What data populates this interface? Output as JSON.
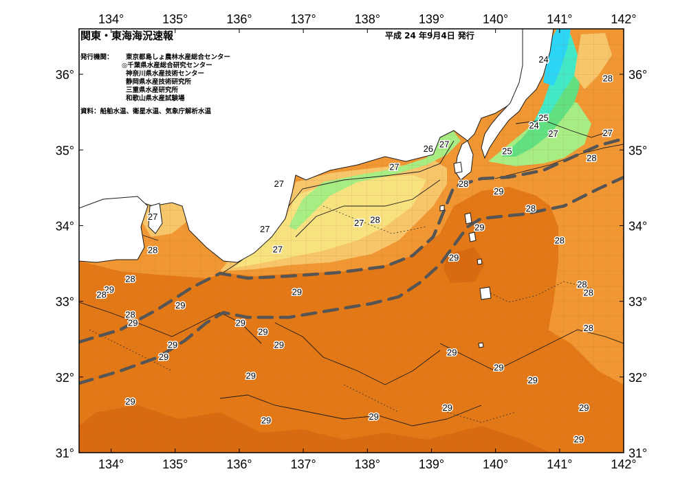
{
  "header": {
    "title": "関東・東海海況速報",
    "issue_date": "平成 24 年9月4日 発行",
    "issuers_label": "発行機関：",
    "issuers": [
      "東京都島しょ農林水産総合センター",
      "◎千葉県水産総合研究センター",
      "神奈川県水産技術センター",
      "静岡県水産技術研究所",
      "三重県水産研究所",
      "和歌山県水産試験場"
    ],
    "sources": "資料：船舶水温、衛星水温、気象庁解析水温"
  },
  "axes": {
    "lon_ticks": [
      "134°",
      "135°",
      "136°",
      "137°",
      "138°",
      "139°",
      "140°",
      "141°",
      "142°"
    ],
    "lat_ticks": [
      "36°",
      "35°",
      "34°",
      "33°",
      "32°",
      "31°"
    ],
    "lon_range": [
      133.5,
      142.0
    ],
    "lat_range": [
      31.0,
      36.6
    ],
    "grid": true
  },
  "colors": {
    "sst_29": "#e37816",
    "sst_29_deep": "#d86b12",
    "sst_28": "#f09633",
    "sst_27": "#f7c56a",
    "sst_26": "#f8e27f",
    "sst_25": "#a8ec84",
    "sst_24": "#62e081",
    "sst_22": "#43e8c6",
    "sst_20": "#2dd5f5",
    "land": "#ffffff",
    "kuroshio_axis": "#555555"
  },
  "isotherm_labels": [
    {
      "text": "24",
      "lon": 140.75,
      "lat": 36.2
    },
    {
      "text": "28",
      "lon": 141.75,
      "lat": 35.95
    },
    {
      "text": "25",
      "lon": 140.75,
      "lat": 35.43
    },
    {
      "text": "24",
      "lon": 140.6,
      "lat": 35.33
    },
    {
      "text": "27",
      "lon": 140.9,
      "lat": 35.22
    },
    {
      "text": "27",
      "lon": 141.75,
      "lat": 35.23
    },
    {
      "text": "26",
      "lon": 138.95,
      "lat": 35.02
    },
    {
      "text": "27",
      "lon": 139.2,
      "lat": 35.08
    },
    {
      "text": "25",
      "lon": 140.18,
      "lat": 34.99
    },
    {
      "text": "28",
      "lon": 141.5,
      "lat": 34.9
    },
    {
      "text": "27",
      "lon": 138.42,
      "lat": 34.78
    },
    {
      "text": "28",
      "lon": 139.5,
      "lat": 34.56
    },
    {
      "text": "29",
      "lon": 140.05,
      "lat": 34.46
    },
    {
      "text": "27",
      "lon": 136.62,
      "lat": 34.56
    },
    {
      "text": "28",
      "lon": 140.55,
      "lat": 34.23
    },
    {
      "text": "27",
      "lon": 134.65,
      "lat": 34.12
    },
    {
      "text": "28",
      "lon": 138.12,
      "lat": 34.08
    },
    {
      "text": "27",
      "lon": 137.87,
      "lat": 34.04
    },
    {
      "text": "29",
      "lon": 139.75,
      "lat": 33.98
    },
    {
      "text": "27",
      "lon": 136.4,
      "lat": 33.96
    },
    {
      "text": "28",
      "lon": 141.0,
      "lat": 33.81
    },
    {
      "text": "28",
      "lon": 134.65,
      "lat": 33.68
    },
    {
      "text": "27",
      "lon": 136.6,
      "lat": 33.69
    },
    {
      "text": "29",
      "lon": 139.35,
      "lat": 33.58
    },
    {
      "text": "28",
      "lon": 134.3,
      "lat": 33.3
    },
    {
      "text": "28",
      "lon": 141.35,
      "lat": 33.23
    },
    {
      "text": "29",
      "lon": 133.97,
      "lat": 33.16
    },
    {
      "text": "29",
      "lon": 136.9,
      "lat": 33.13
    },
    {
      "text": "28",
      "lon": 141.45,
      "lat": 33.12
    },
    {
      "text": "28",
      "lon": 133.85,
      "lat": 33.09
    },
    {
      "text": "29",
      "lon": 135.08,
      "lat": 32.95
    },
    {
      "text": "28",
      "lon": 134.3,
      "lat": 32.83
    },
    {
      "text": "29",
      "lon": 134.34,
      "lat": 32.72
    },
    {
      "text": "29",
      "lon": 136.02,
      "lat": 32.72
    },
    {
      "text": "29",
      "lon": 136.37,
      "lat": 32.6
    },
    {
      "text": "28",
      "lon": 141.45,
      "lat": 32.65
    },
    {
      "text": "29",
      "lon": 134.96,
      "lat": 32.43
    },
    {
      "text": "29",
      "lon": 136.62,
      "lat": 32.43
    },
    {
      "text": "29",
      "lon": 139.32,
      "lat": 32.33
    },
    {
      "text": "29",
      "lon": 134.82,
      "lat": 32.27
    },
    {
      "text": "29",
      "lon": 140.05,
      "lat": 32.13
    },
    {
      "text": "29",
      "lon": 136.18,
      "lat": 32.02
    },
    {
      "text": "29",
      "lon": 140.58,
      "lat": 31.96
    },
    {
      "text": "29",
      "lon": 134.3,
      "lat": 31.68
    },
    {
      "text": "29",
      "lon": 139.25,
      "lat": 31.6
    },
    {
      "text": "29",
      "lon": 141.38,
      "lat": 31.6
    },
    {
      "text": "29",
      "lon": 138.1,
      "lat": 31.48
    },
    {
      "text": "29",
      "lon": 136.42,
      "lat": 31.43
    },
    {
      "text": "29",
      "lon": 141.3,
      "lat": 31.18
    }
  ]
}
